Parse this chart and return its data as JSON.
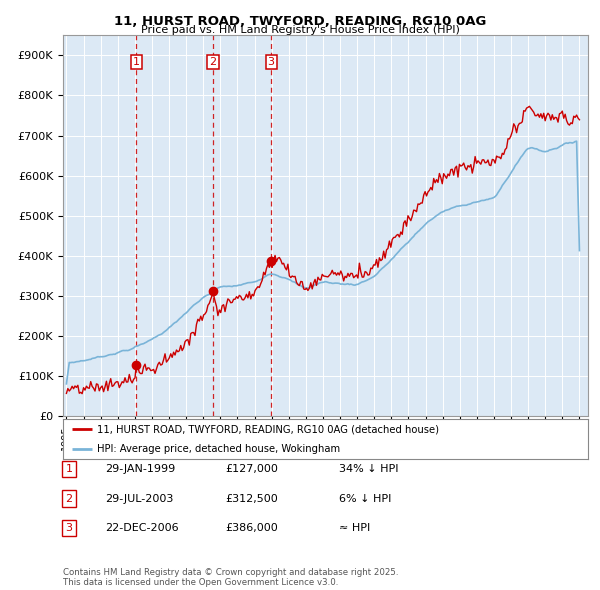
{
  "title": "11, HURST ROAD, TWYFORD, READING, RG10 0AG",
  "subtitle": "Price paid vs. HM Land Registry's House Price Index (HPI)",
  "background_color": "#ffffff",
  "chart_bg_color": "#dce9f5",
  "grid_color": "#ffffff",
  "hpi_color": "#7ab4d8",
  "price_color": "#cc0000",
  "vline_color": "#cc0000",
  "transactions": [
    {
      "date": 1999.08,
      "price": 127000,
      "label": "1"
    },
    {
      "date": 2003.57,
      "price": 312500,
      "label": "2"
    },
    {
      "date": 2006.97,
      "price": 386000,
      "label": "3"
    }
  ],
  "table_rows": [
    {
      "num": "1",
      "date": "29-JAN-1999",
      "price": "£127,000",
      "hpi": "34% ↓ HPI"
    },
    {
      "num": "2",
      "date": "29-JUL-2003",
      "price": "£312,500",
      "hpi": "6% ↓ HPI"
    },
    {
      "num": "3",
      "date": "22-DEC-2006",
      "price": "£386,000",
      "hpi": "≈ HPI"
    }
  ],
  "legend_house_label": "11, HURST ROAD, TWYFORD, READING, RG10 0AG (detached house)",
  "legend_hpi_label": "HPI: Average price, detached house, Wokingham",
  "footer": "Contains HM Land Registry data © Crown copyright and database right 2025.\nThis data is licensed under the Open Government Licence v3.0.",
  "ylim": [
    0,
    950000
  ],
  "xlim_start": 1994.8,
  "xlim_end": 2025.5,
  "yticks": [
    0,
    100000,
    200000,
    300000,
    400000,
    500000,
    600000,
    700000,
    800000,
    900000
  ],
  "ylabels": [
    "£0",
    "£100K",
    "£200K",
    "£300K",
    "£400K",
    "£500K",
    "£600K",
    "£700K",
    "£800K",
    "£900K"
  ]
}
